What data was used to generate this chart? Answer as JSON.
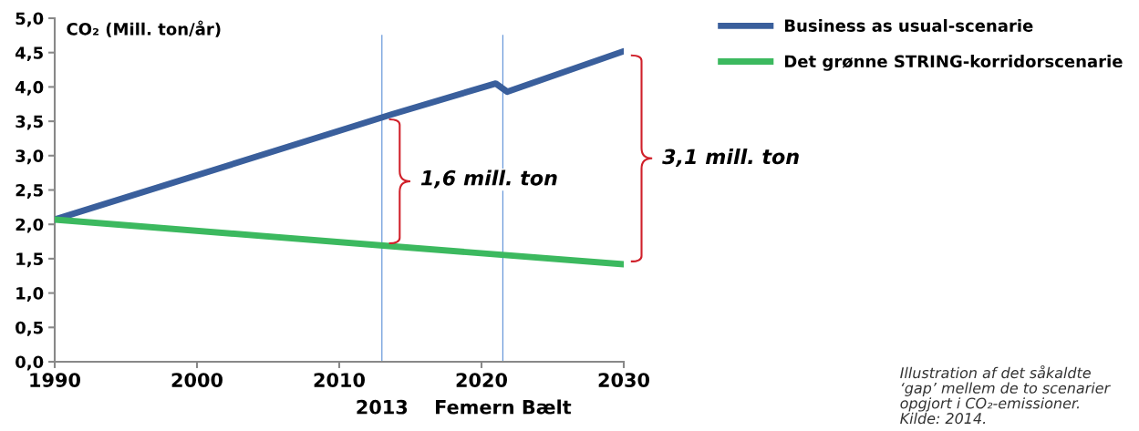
{
  "chart_data": {
    "type": "line",
    "ylabel": "CO₂ (Mill. ton/år)",
    "series": [
      {
        "name": "Business as usual-scenarie",
        "color": "#3a5f9c",
        "x": [
          1990,
          2013.7,
          2021,
          2021.8,
          2030
        ],
        "values": [
          2.07,
          3.6,
          4.05,
          3.93,
          4.52
        ]
      },
      {
        "name": "Det grønne STRING-korridorscenarie",
        "color": "#3cb95f",
        "x": [
          1990,
          2013.7,
          2030
        ],
        "values": [
          2.07,
          1.68,
          1.42
        ]
      }
    ],
    "xlim": [
      1990,
      2030
    ],
    "xticks": [
      1990,
      2000,
      2010,
      2020,
      2030
    ],
    "ylim": [
      0,
      5
    ],
    "yticks": [
      {
        "value": 0,
        "label": "0,0"
      },
      {
        "value": 0.5,
        "label": "0,5"
      },
      {
        "value": 1,
        "label": "1,0"
      },
      {
        "value": 1.5,
        "label": "1,5"
      },
      {
        "value": 2,
        "label": "2,0"
      },
      {
        "value": 2.5,
        "label": "2,5"
      },
      {
        "value": 3,
        "label": "3,0"
      },
      {
        "value": 3.5,
        "label": "3,5"
      },
      {
        "value": 4,
        "label": "4,0"
      },
      {
        "value": 4.5,
        "label": "4,5"
      },
      {
        "value": 5,
        "label": "5,0"
      }
    ],
    "ref_lines": [
      {
        "axis": "x",
        "value": 2013,
        "label": "2013",
        "color": "#5b8fd6"
      },
      {
        "axis": "x",
        "value": 2021.5,
        "label": "Femern Bælt",
        "color": "#5b8fd6"
      }
    ],
    "annotations": [
      {
        "text": "1,6 mill. ton",
        "x": 2013,
        "y": 2.65
      },
      "3,1 mill. ton",
      "Illustration af det såkaldte\n‘gap’ mellem de to scenarier\nopgjort i CO₂-emissioner.\nKilde: 2014."
    ],
    "legend": "top right",
    "grid": false,
    "marker": "none",
    "line_style": "solid"
  }
}
